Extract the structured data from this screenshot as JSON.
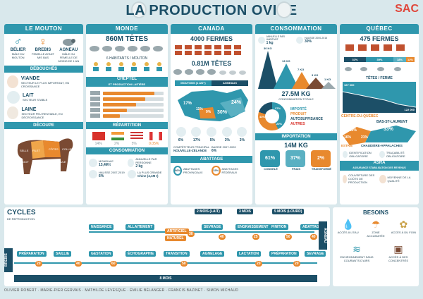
{
  "header": {
    "title": "LA PRODUCTION OVINE",
    "logo": "SAC"
  },
  "mouton": {
    "title": "LE MOUTON",
    "belier": "BÉLIER",
    "belier_desc": "MÂLE DU MOUTON",
    "brebis": "BREBIS",
    "brebis_desc": "FEMELLE AYANT MIS BAS",
    "agneau": "AGNEAU",
    "agneau_desc": "MÂLE OU FEMELLE DE MOINS DE 1 AN",
    "debouches": "DÉBOUCHÉS",
    "viande": "VIANDE",
    "viande_desc": "SECTEUR LE PLUS IMPORTANT, EN CROISSANCE",
    "lait": "LAIT",
    "lait_desc": "SECTEUR STABLE",
    "laine": "LAINE",
    "laine_desc": "SECTEUR PEU RENTABLE, EN DÉCROISSANCE",
    "decoupe": "DÉCOUPE",
    "cuts": [
      "COLLIER",
      "CÔTES",
      "FILET",
      "SELLE",
      "ÉPAULE",
      "POITRINE",
      "GIGOT"
    ]
  },
  "monde": {
    "title": "MONDE",
    "tetes": "860M TÊTES",
    "ratio": "6 HABITANTS / MOUTON",
    "cheptel": "CHEPTEL",
    "cheptel_sub": "ET PRODUCTION LAITIÈRE",
    "repartition": "RÉPARTITION",
    "rep_values": [
      "14%",
      "2%",
      "5%",
      "0.05%"
    ],
    "consommation": "CONSOMMATION",
    "mondiale_label": "MONDIALE",
    "mondiale_val": "13,4M t",
    "annuelle_label": "ANNUELLE PAR PERSONNE",
    "annuelle_val": "2 kg",
    "hausse_label": "HAUSSE 2007-2019",
    "hausse_val": "6%",
    "plus_grande_label": "LA PLUS GRANDE",
    "plus_grande_val": "Chine (4,1M t)"
  },
  "canada": {
    "title": "CANADA",
    "fermes": "4000 FERMES",
    "tetes": "0.81M TÊTES",
    "bar_labels": [
      "MOUTONS (1 AN+)",
      "AGNEAUX"
    ],
    "map_pcts": [
      "24%",
      "17%",
      "11%",
      "9%",
      "30%"
    ],
    "animal_pcts": [
      "6%",
      "17%",
      "5%",
      "3%",
      "3%"
    ],
    "comp_label": "COMPÉTITEUR PRINCIPAL",
    "comp_val": "NOUVELLE-ZÉLANDE",
    "baisse_label": "BAISSE 2007-2020",
    "baisse_val": "6%",
    "abattage": "ABATTAGE",
    "ab_labels": [
      "ABATTAGES PROVINCIAUX",
      "ABATTAGES FÉDÉRAUX"
    ],
    "ab_values": [
      "66%",
      "33%"
    ]
  },
  "consommation": {
    "title": "CONSOMMATION",
    "annuelle_label": "ANNUELLE PAR HABITANT",
    "annuelle_val": "1 kg",
    "hausse_label": "HAUSSE 2000-2016",
    "hausse_val": "30%",
    "kg_labels": [
      "30 KG",
      "13 KG",
      "7 KG",
      "3 KG",
      "1 KG"
    ],
    "total": "27.5M KG",
    "total_sub": "CONSOMMATION TOTALE",
    "legend": [
      "IMPORTÉ",
      "PRODUIT",
      "AUTOSUFFISANCE",
      "AUTRES"
    ],
    "donut_pcts": [
      "43%",
      "37%",
      "20%"
    ],
    "importation": "IMPORTATION",
    "import_total": "14M KG",
    "import_pcts": [
      "61%",
      "37%",
      "2%"
    ],
    "import_labels": [
      "CONGELÉ",
      "FRAIS",
      "TRANSFORMÉ"
    ]
  },
  "quebec": {
    "title": "QUÉBEC",
    "fermes": "475 FERMES",
    "tetes_ferme": "TÊTES / FERME",
    "herd_vals": [
      "31%",
      "39%",
      "18%",
      "12%"
    ],
    "chart_vals": [
      "167 000",
      "122 000"
    ],
    "regions": [
      "CENTRE-DU-QUÉBEC",
      "BAS-ST-LAURENT",
      "ESTRIE",
      "CHAUDIÈRE-APPALACHES"
    ],
    "region_pcts": [
      "12%",
      "16%",
      "33%",
      "21%"
    ],
    "features": [
      "IDENTIFICATION OBLIGATOIRE",
      "TRAÇABILITÉ OBLIGATOIRE"
    ],
    "asra": "ASRA",
    "asra_sub": "ASSURANCE STABILISATION DES REVENUS",
    "asra_items": [
      "COUVERTURE DES COÛTS DE PRODUCTION",
      "MOYENNE DE LA QUALITÉ"
    ]
  },
  "cycles": {
    "title": "CYCLES",
    "sub": "DE REPRODUCTION",
    "agneau_steps": [
      "NAISSANCE",
      "ALLAITEMENT",
      "SEVRAGE",
      "ENGRAISSEMENT",
      "FINITION",
      "ABATTAGE"
    ],
    "allaitement_opts": [
      "ARTIFICIEL",
      "NATUREL"
    ],
    "top_spans": [
      "2 MOIS (LAIT)",
      "3 MOIS",
      "5 MOIS (LOURD)"
    ],
    "agneau_nums": [
      "30",
      "40",
      "25",
      "50",
      "40"
    ],
    "brebis_steps": [
      "PRÉPARATION",
      "SAILLIE",
      "GESTATION",
      "ÉCHOGRAPHIE",
      "TRANSITION",
      "AGNELAGE",
      "LACTATION",
      "PRÉPARATION",
      "SEVRAGE"
    ],
    "brebis_nums": [
      "20",
      "40",
      "60",
      "50",
      "20",
      "20"
    ],
    "side_top": "AGNEAU",
    "side_bottom": "BREBIS",
    "duration": "8 MOIS"
  },
  "besoins": {
    "title": "BESOINS",
    "items": [
      "ACCÈS À L'EAU",
      "ZONE ACCLIMATÉE",
      "ACCÈS À DU FOIN",
      "ENVIRONNEMENT SANS COURANTS D'AIRS",
      "ACCÈS À DES CONCENTRÉS"
    ]
  },
  "footer": {
    "credits": "OLIVIER ROBERT · MARIE-PIER GERVAIS · MATHILDE LEVESQUE · ÉMILIE BÉLANGER · FRANCIS BAZINET · SIMON MICHAUD"
  },
  "colors": {
    "teal": "#2f97ad",
    "orange": "#e8892e",
    "navy": "#1c4f67",
    "brown": "#7a4a33",
    "bg": "#d9e8ec"
  }
}
